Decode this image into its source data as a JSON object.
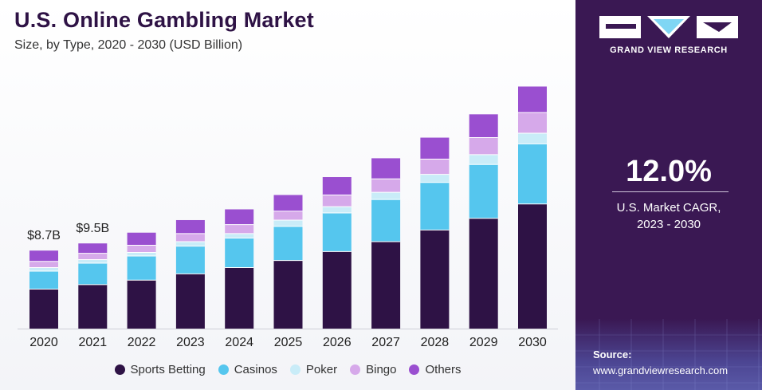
{
  "header": {
    "title": "U.S. Online Gambling Market",
    "subtitle": "Size, by Type, 2020 - 2030 (USD Billion)"
  },
  "colors": {
    "sports_betting": "#2e1245",
    "casinos": "#55c6ee",
    "poker": "#c9ecf8",
    "bingo": "#d6a9ea",
    "others": "#9a4fd0",
    "panel": "#3a1853"
  },
  "chart_data": {
    "type": "bar",
    "stacked": true,
    "categories": [
      "2020",
      "2021",
      "2022",
      "2023",
      "2024",
      "2025",
      "2026",
      "2027",
      "2028",
      "2029",
      "2030"
    ],
    "series": [
      {
        "name": "Sports Betting",
        "values": [
          4.4,
          4.9,
          5.4,
          6.1,
          6.8,
          7.6,
          8.6,
          9.7,
          11.0,
          12.3,
          13.9
        ]
      },
      {
        "name": "Casinos",
        "values": [
          2.0,
          2.4,
          2.7,
          3.1,
          3.3,
          3.8,
          4.3,
          4.7,
          5.3,
          6.0,
          6.7
        ]
      },
      {
        "name": "Poker",
        "values": [
          0.4,
          0.4,
          0.4,
          0.5,
          0.5,
          0.7,
          0.7,
          0.8,
          0.9,
          1.1,
          1.2
        ]
      },
      {
        "name": "Bingo",
        "values": [
          0.7,
          0.7,
          0.8,
          0.9,
          1.0,
          1.0,
          1.3,
          1.5,
          1.7,
          1.9,
          2.3
        ]
      },
      {
        "name": "Others",
        "values": [
          1.2,
          1.1,
          1.4,
          1.5,
          1.7,
          1.8,
          2.0,
          2.3,
          2.4,
          2.6,
          2.9
        ]
      }
    ],
    "data_labels": [
      {
        "category": "2020",
        "text": "$8.7B"
      },
      {
        "category": "2021",
        "text": "$9.5B"
      }
    ],
    "ylim": [
      0,
      29
    ],
    "legend_position": "bottom",
    "grid": false
  },
  "sidebar": {
    "brand": "GRAND VIEW RESEARCH",
    "cagr_value": "12.0%",
    "cagr_label_line1": "U.S. Market CAGR,",
    "cagr_label_line2": "2023 - 2030",
    "source_title": "Source:",
    "source_url": "www.grandviewresearch.com"
  }
}
